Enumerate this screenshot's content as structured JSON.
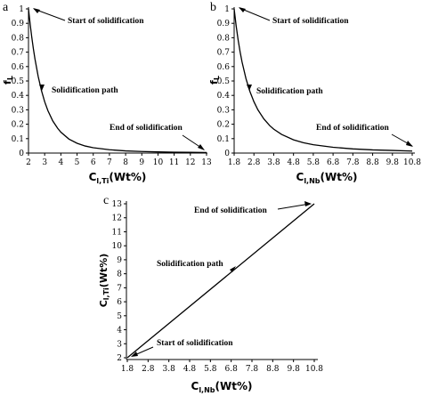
{
  "chart_data": [
    {
      "panel": "a",
      "type": "line",
      "ylabel_main": "f",
      "ylabel_sub": "L",
      "xlabel_main": "C",
      "xlabel_sub": "l,Ti",
      "xlabel_unit": "(Wt%)",
      "xlim": [
        2,
        13
      ],
      "ylim": [
        0,
        1
      ],
      "xticks": [
        2,
        3,
        4,
        5,
        6,
        7,
        8,
        9,
        10,
        11,
        12,
        13
      ],
      "yticks": [
        0,
        0.1,
        0.2,
        0.3,
        0.4,
        0.5,
        0.6,
        0.7,
        0.8,
        0.9,
        1
      ],
      "series": [
        {
          "x": [
            2.0,
            2.1,
            2.2,
            2.3,
            2.4,
            2.6,
            2.8,
            3.0,
            3.2,
            3.5,
            3.8,
            4.0,
            4.5,
            5.0,
            5.5,
            6.0,
            7.0,
            8.0,
            9.0,
            10.0,
            11.0,
            12.0,
            13.0
          ],
          "y": [
            1.0,
            0.897,
            0.806,
            0.725,
            0.653,
            0.531,
            0.434,
            0.356,
            0.294,
            0.223,
            0.172,
            0.145,
            0.097,
            0.068,
            0.049,
            0.037,
            0.023,
            0.015,
            0.011,
            0.008,
            0.006,
            0.005,
            0.004
          ]
        }
      ],
      "annotations": [
        "Start of solidification",
        "Solidification path",
        "End of solidification"
      ]
    },
    {
      "panel": "b",
      "type": "line",
      "ylabel_main": "f",
      "ylabel_sub": "L",
      "xlabel_main": "C",
      "xlabel_sub": "l,Nb",
      "xlabel_unit": "(Wt%)",
      "xlim": [
        1.8,
        10.8
      ],
      "ylim": [
        0,
        1
      ],
      "xticks": [
        "1.8",
        "2.8",
        "3.8",
        "4.8",
        "5.8",
        "6.8",
        "7.8",
        "8.8",
        "9.8",
        "10.8"
      ],
      "yticks": [
        0,
        0.1,
        0.2,
        0.3,
        0.4,
        0.5,
        0.6,
        0.7,
        0.8,
        0.9,
        1
      ],
      "series": [
        {
          "x": [
            1.8,
            1.9,
            2.0,
            2.1,
            2.2,
            2.4,
            2.6,
            2.8,
            3.0,
            3.3,
            3.6,
            3.8,
            4.2,
            4.8,
            5.3,
            5.8,
            6.8,
            7.8,
            8.8,
            9.8,
            10.8
          ],
          "y": [
            1.0,
            0.884,
            0.786,
            0.703,
            0.631,
            0.515,
            0.426,
            0.356,
            0.3,
            0.237,
            0.19,
            0.166,
            0.129,
            0.092,
            0.072,
            0.058,
            0.04,
            0.029,
            0.022,
            0.018,
            0.014
          ]
        }
      ],
      "annotations": [
        "Start of solidification",
        "Solidification path",
        "End of solidification"
      ]
    },
    {
      "panel": "c",
      "type": "line",
      "ylabel_main": "C",
      "ylabel_sub": "l,Ti",
      "ylabel_unit": "(Wt%)",
      "xlabel_main": "C",
      "xlabel_sub": "l,Nb",
      "xlabel_unit": "(Wt%)",
      "xlim": [
        1.8,
        10.8
      ],
      "ylim": [
        2,
        13
      ],
      "xticks": [
        "1.8",
        "2.8",
        "3.8",
        "4.8",
        "5.8",
        "6.8",
        "7.8",
        "8.8",
        "9.8",
        "10.8"
      ],
      "yticks": [
        2,
        3,
        4,
        5,
        6,
        7,
        8,
        9,
        10,
        11,
        12,
        13
      ],
      "series": [
        {
          "x": [
            1.8,
            10.8
          ],
          "y": [
            2.0,
            13.0
          ]
        }
      ],
      "annotations": [
        "End of solidification",
        "Solidification path",
        "Start of solidification"
      ]
    }
  ]
}
